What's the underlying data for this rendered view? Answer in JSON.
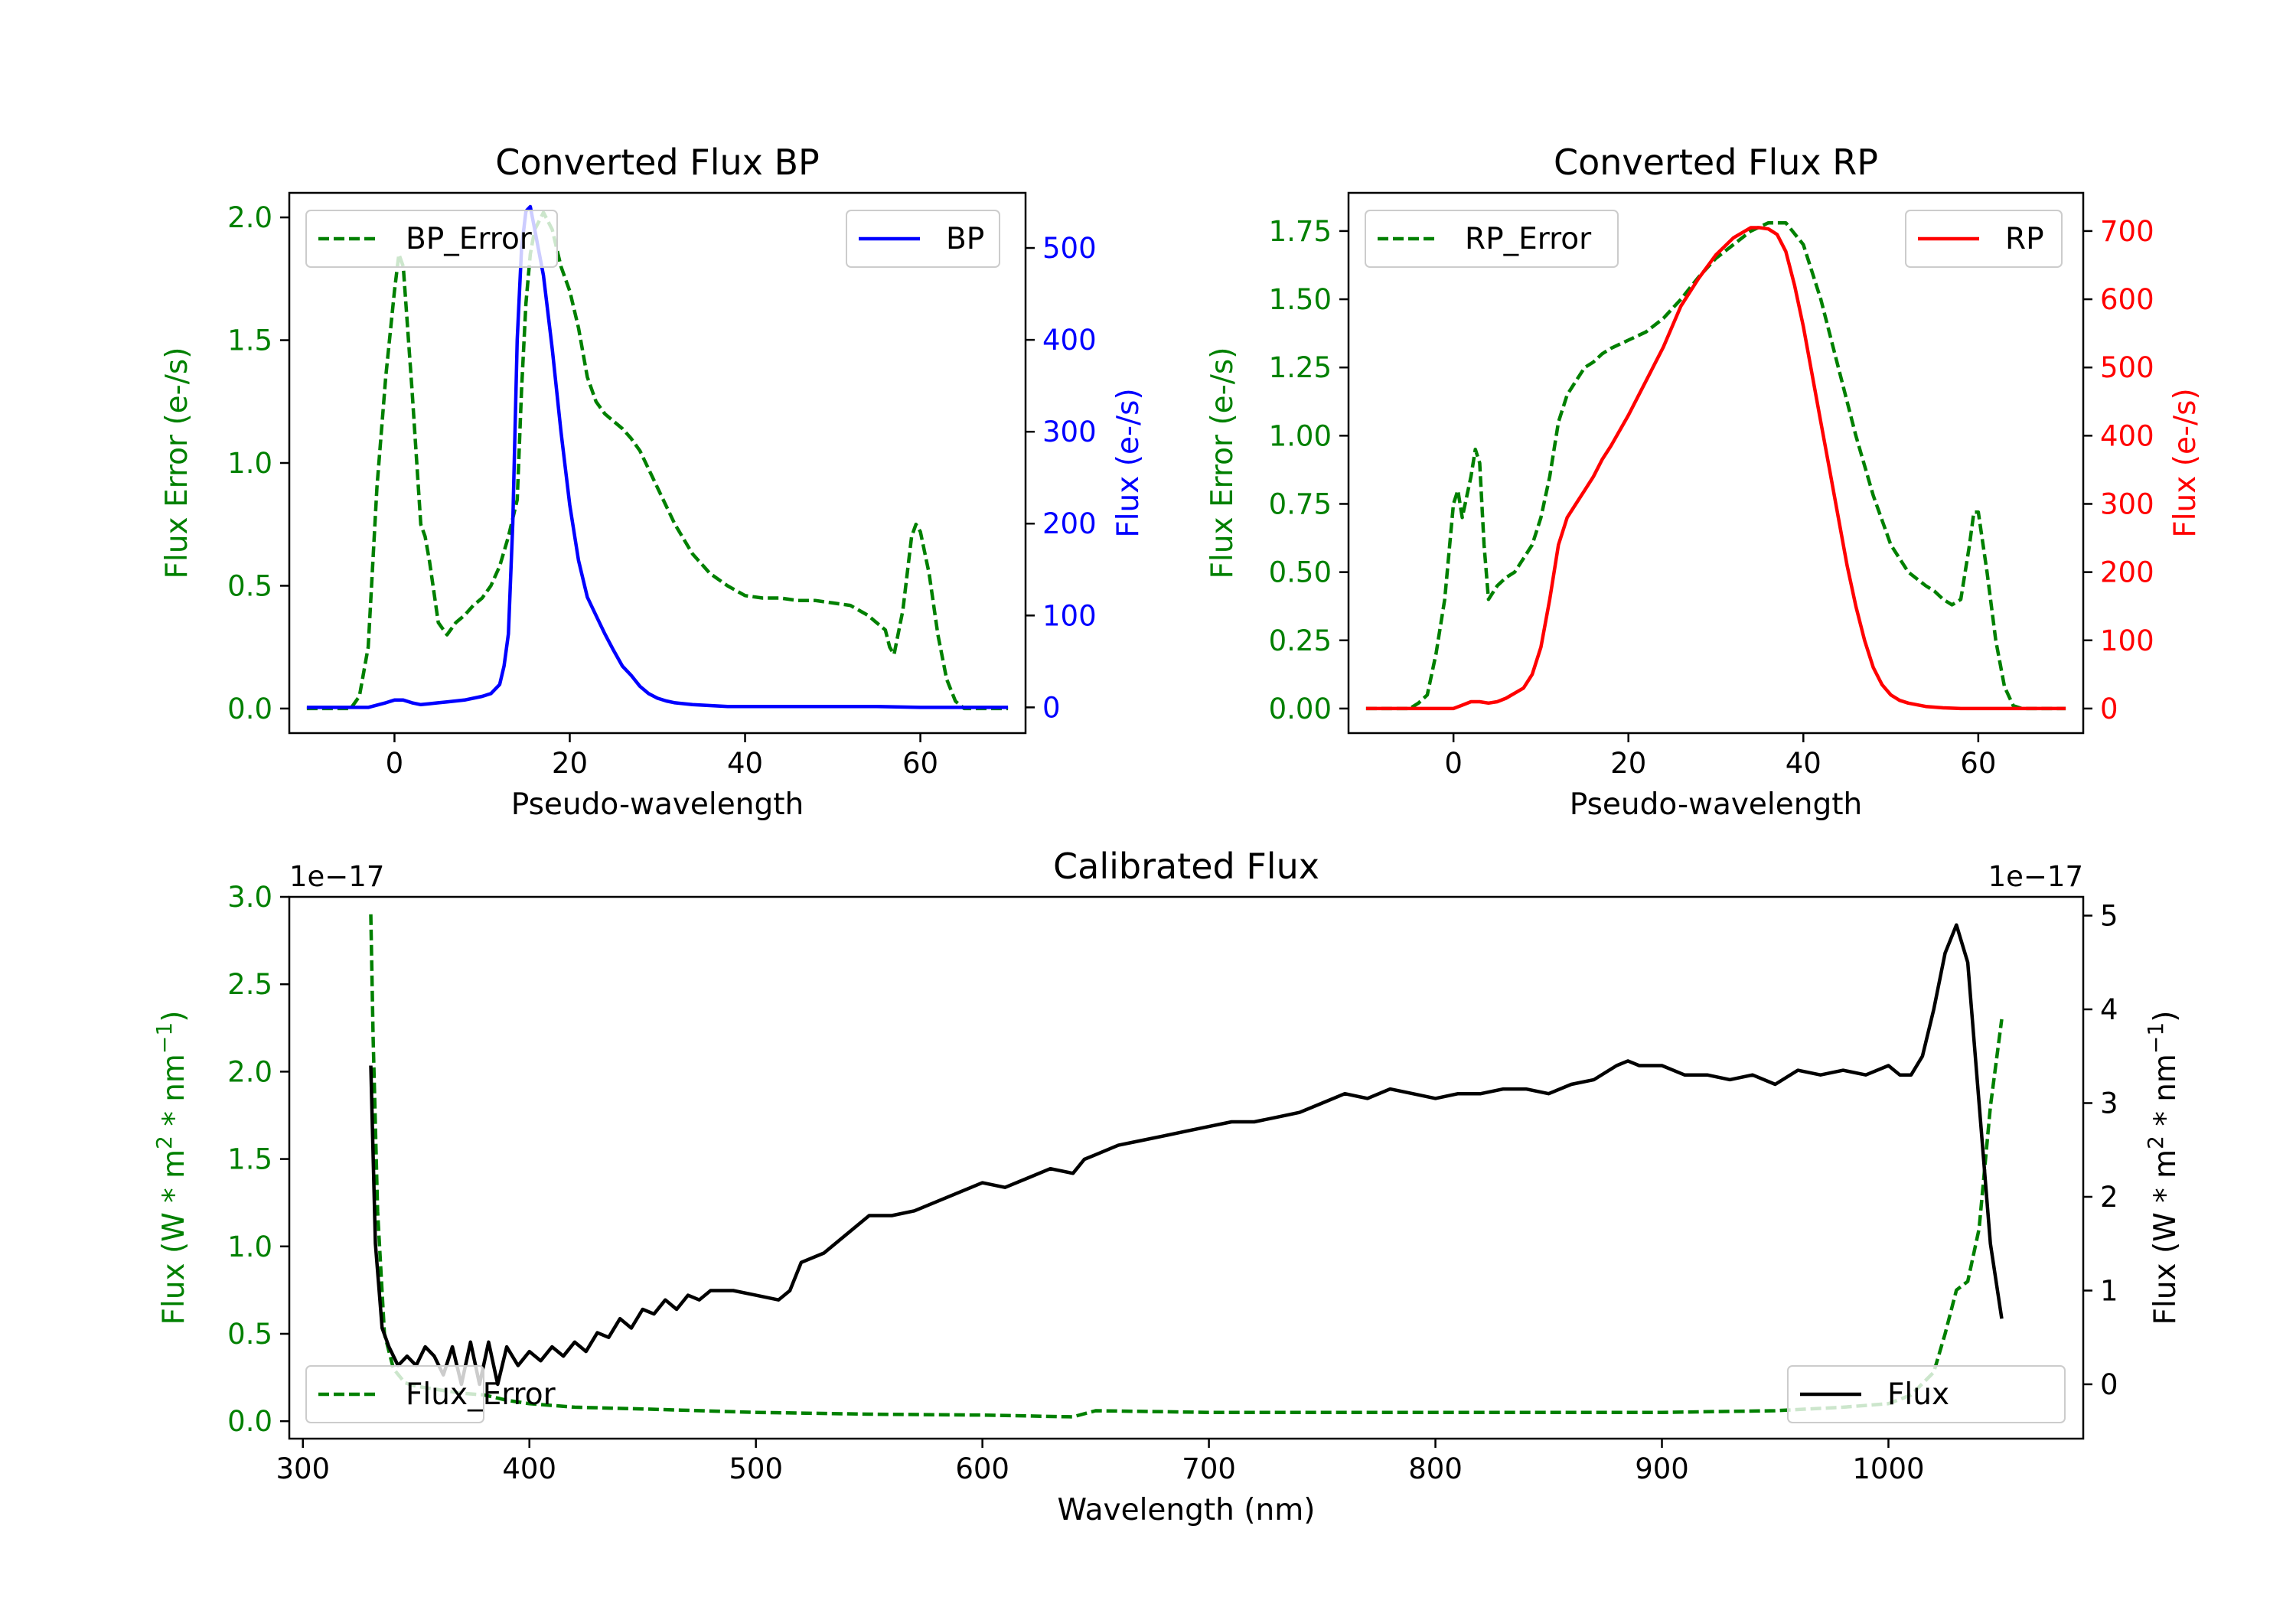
{
  "colors": {
    "bp": "#0000ff",
    "rp": "#ff0000",
    "error": "#008000",
    "flux": "#000000",
    "axis": "#000000"
  },
  "chart_data": [
    {
      "id": "bp",
      "type": "line",
      "title": "Converted Flux BP",
      "xlabel": "Pseudo-wavelength",
      "ylabel_left": "Flux Error (e-/s)",
      "ylabel_right": "Flux (e-/s)",
      "xlim": [
        -12,
        72
      ],
      "ylim_left": [
        -0.1,
        2.1
      ],
      "ylim_right": [
        -28,
        560
      ],
      "xticks": [
        0,
        20,
        40,
        60
      ],
      "yticks_left": [
        0.0,
        0.5,
        1.0,
        1.5,
        2.0
      ],
      "yticks_left_labels": [
        "0.0",
        "0.5",
        "1.0",
        "1.5",
        "2.0"
      ],
      "yticks_right": [
        0,
        100,
        200,
        300,
        400,
        500
      ],
      "yticks_right_labels": [
        "0",
        "100",
        "200",
        "300",
        "400",
        "500"
      ],
      "series": [
        {
          "name": "BP_Error",
          "axis": "left",
          "style": "dashed",
          "color": "#008000",
          "x": [
            -10,
            -5,
            -4,
            -3,
            -2,
            -1,
            0,
            0.5,
            1,
            2,
            3,
            3.5,
            4,
            5,
            6,
            7,
            8,
            9,
            10,
            11,
            12,
            13,
            14,
            14.5,
            15,
            15.5,
            16,
            17,
            18,
            19,
            20,
            21,
            22,
            23,
            24,
            25,
            26,
            27,
            28,
            30,
            32,
            34,
            36,
            38,
            40,
            42,
            44,
            46,
            48,
            50,
            52,
            54,
            55,
            56,
            56.5,
            57,
            58,
            59,
            59.5,
            60,
            61,
            62,
            63,
            64,
            65,
            66,
            70
          ],
          "y": [
            0,
            0,
            0.05,
            0.25,
            0.9,
            1.35,
            1.7,
            1.85,
            1.8,
            1.3,
            0.75,
            0.7,
            0.6,
            0.35,
            0.3,
            0.35,
            0.38,
            0.42,
            0.45,
            0.5,
            0.58,
            0.7,
            0.85,
            1.3,
            1.65,
            1.85,
            1.95,
            2.02,
            1.95,
            1.8,
            1.7,
            1.55,
            1.35,
            1.25,
            1.2,
            1.17,
            1.14,
            1.1,
            1.05,
            0.9,
            0.75,
            0.63,
            0.55,
            0.5,
            0.46,
            0.45,
            0.45,
            0.44,
            0.44,
            0.43,
            0.42,
            0.38,
            0.35,
            0.32,
            0.25,
            0.22,
            0.4,
            0.7,
            0.75,
            0.72,
            0.55,
            0.3,
            0.12,
            0.03,
            0,
            0,
            0
          ]
        },
        {
          "name": "BP",
          "axis": "right",
          "style": "solid",
          "color": "#0000ff",
          "x": [
            -10,
            -5,
            -3,
            -1,
            0,
            1,
            2,
            3,
            4,
            5,
            6,
            8,
            10,
            11,
            12,
            12.5,
            13,
            13.5,
            14,
            14.5,
            15,
            15.5,
            16,
            17,
            18,
            19,
            20,
            21,
            22,
            23,
            24,
            25,
            26,
            27,
            28,
            29,
            30,
            31,
            32,
            34,
            36,
            38,
            40,
            45,
            50,
            55,
            60,
            65,
            70
          ],
          "y": [
            0,
            0,
            0,
            5,
            8,
            8,
            5,
            3,
            4,
            5,
            6,
            8,
            12,
            15,
            25,
            45,
            80,
            200,
            400,
            500,
            540,
            545,
            520,
            470,
            390,
            300,
            220,
            160,
            120,
            100,
            80,
            62,
            45,
            35,
            23,
            15,
            10,
            7,
            5,
            3,
            2,
            1,
            1,
            1,
            1,
            1,
            0,
            0,
            0
          ]
        }
      ]
    },
    {
      "id": "rp",
      "type": "line",
      "title": "Converted Flux RP",
      "xlabel": "Pseudo-wavelength",
      "ylabel_left": "Flux Error (e-/s)",
      "ylabel_right": "Flux (e-/s)",
      "xlim": [
        -12,
        72
      ],
      "ylim_left": [
        -0.09,
        1.89
      ],
      "ylim_right": [
        -36,
        756
      ],
      "xticks": [
        0,
        20,
        40,
        60
      ],
      "yticks_left": [
        0.0,
        0.25,
        0.5,
        0.75,
        1.0,
        1.25,
        1.5,
        1.75
      ],
      "yticks_left_labels": [
        "0.00",
        "0.25",
        "0.50",
        "0.75",
        "1.00",
        "1.25",
        "1.50",
        "1.75"
      ],
      "yticks_right": [
        0,
        100,
        200,
        300,
        400,
        500,
        600,
        700
      ],
      "yticks_right_labels": [
        "0",
        "100",
        "200",
        "300",
        "400",
        "500",
        "600",
        "700"
      ],
      "series": [
        {
          "name": "RP_Error",
          "axis": "left",
          "style": "dashed",
          "color": "#008000",
          "x": [
            -10,
            -5,
            -4,
            -3,
            -2,
            -1,
            0,
            0.5,
            1,
            2,
            2.5,
            3,
            3.5,
            4,
            5,
            6,
            7,
            8,
            9,
            10,
            11,
            12,
            13,
            14,
            15,
            16,
            17,
            18,
            20,
            22,
            24,
            26,
            28,
            30,
            32,
            34,
            36,
            38,
            40,
            42,
            44,
            46,
            48,
            50,
            52,
            54,
            55,
            56,
            57,
            58,
            59,
            59.5,
            60,
            61,
            62,
            63,
            64,
            65,
            70
          ],
          "y": [
            0,
            0,
            0.02,
            0.05,
            0.2,
            0.4,
            0.75,
            0.8,
            0.7,
            0.85,
            0.95,
            0.9,
            0.6,
            0.4,
            0.45,
            0.48,
            0.5,
            0.55,
            0.6,
            0.7,
            0.85,
            1.05,
            1.15,
            1.2,
            1.25,
            1.27,
            1.3,
            1.32,
            1.35,
            1.38,
            1.43,
            1.5,
            1.58,
            1.65,
            1.7,
            1.75,
            1.78,
            1.78,
            1.7,
            1.5,
            1.25,
            1.0,
            0.78,
            0.6,
            0.5,
            0.45,
            0.43,
            0.4,
            0.38,
            0.4,
            0.6,
            0.72,
            0.72,
            0.5,
            0.25,
            0.08,
            0.01,
            0,
            0
          ]
        },
        {
          "name": "RP",
          "axis": "right",
          "style": "solid",
          "color": "#ff0000",
          "x": [
            -10,
            -5,
            0,
            1,
            2,
            3,
            4,
            5,
            6,
            8,
            9,
            10,
            11,
            12,
            13,
            14,
            15,
            16,
            17,
            18,
            20,
            22,
            24,
            26,
            28,
            30,
            32,
            34,
            35,
            36,
            37,
            38,
            39,
            40,
            41,
            42,
            43,
            44,
            45,
            46,
            47,
            48,
            49,
            50,
            51,
            52,
            54,
            56,
            58,
            60,
            62,
            65,
            70
          ],
          "y": [
            0,
            0,
            0,
            5,
            10,
            10,
            8,
            10,
            15,
            30,
            50,
            90,
            160,
            240,
            280,
            300,
            320,
            340,
            365,
            385,
            430,
            480,
            530,
            590,
            630,
            665,
            690,
            705,
            705,
            703,
            695,
            670,
            620,
            560,
            490,
            420,
            350,
            280,
            210,
            150,
            100,
            60,
            35,
            20,
            12,
            8,
            3,
            1,
            0,
            0,
            0,
            0,
            0
          ]
        }
      ]
    },
    {
      "id": "calibrated",
      "type": "line",
      "title": "Calibrated Flux",
      "xlabel": "Wavelength (nm)",
      "ylabel_left": "Flux (W * m^2 * nm^-1)",
      "ylabel_right": "Flux (W * m^2 * nm^-1)",
      "offset_left": "1e−17",
      "offset_right": "1e−17",
      "xlim": [
        294,
        1086
      ],
      "ylim_left": [
        -0.1,
        3.0
      ],
      "ylim_right": [
        -0.58,
        5.2
      ],
      "xticks": [
        300,
        400,
        500,
        600,
        700,
        800,
        900,
        1000
      ],
      "yticks_left": [
        0.0,
        0.5,
        1.0,
        1.5,
        2.0,
        2.5,
        3.0
      ],
      "yticks_left_labels": [
        "0.0",
        "0.5",
        "1.0",
        "1.5",
        "2.0",
        "2.5",
        "3.0"
      ],
      "yticks_right": [
        0,
        1,
        2,
        3,
        4,
        5
      ],
      "yticks_right_labels": [
        "0",
        "1",
        "2",
        "3",
        "4",
        "5"
      ],
      "series": [
        {
          "name": "Flux_Error",
          "axis": "left",
          "style": "dashed",
          "color": "#008000",
          "x": [
            330,
            331,
            333,
            336,
            340,
            345,
            350,
            360,
            370,
            380,
            390,
            400,
            420,
            450,
            500,
            550,
            600,
            640,
            650,
            700,
            800,
            900,
            950,
            980,
            1000,
            1010,
            1020,
            1025,
            1030,
            1035,
            1040,
            1045,
            1050
          ],
          "y": [
            2.9,
            2.2,
            1.2,
            0.5,
            0.3,
            0.22,
            0.2,
            0.18,
            0.16,
            0.15,
            0.12,
            0.1,
            0.08,
            0.07,
            0.05,
            0.04,
            0.035,
            0.025,
            0.06,
            0.05,
            0.05,
            0.05,
            0.06,
            0.08,
            0.1,
            0.15,
            0.28,
            0.5,
            0.75,
            0.8,
            1.1,
            1.8,
            2.3
          ]
        },
        {
          "name": "Flux",
          "axis": "right",
          "style": "solid",
          "color": "#000000",
          "x": [
            330,
            332,
            335,
            338,
            342,
            346,
            350,
            354,
            358,
            362,
            366,
            370,
            374,
            378,
            382,
            386,
            390,
            395,
            400,
            405,
            410,
            415,
            420,
            425,
            430,
            435,
            440,
            445,
            450,
            455,
            460,
            465,
            470,
            475,
            480,
            490,
            500,
            510,
            515,
            520,
            530,
            540,
            550,
            560,
            570,
            580,
            590,
            600,
            610,
            620,
            630,
            640,
            645,
            650,
            660,
            670,
            680,
            690,
            700,
            710,
            720,
            730,
            740,
            750,
            760,
            770,
            780,
            790,
            800,
            810,
            820,
            830,
            840,
            850,
            860,
            870,
            880,
            885,
            890,
            900,
            910,
            920,
            930,
            940,
            950,
            960,
            970,
            980,
            990,
            1000,
            1005,
            1010,
            1015,
            1020,
            1025,
            1030,
            1035,
            1040,
            1045,
            1050
          ],
          "y": [
            3.4,
            1.5,
            0.6,
            0.4,
            0.2,
            0.3,
            0.2,
            0.4,
            0.3,
            0.1,
            0.4,
            0.0,
            0.45,
            0.0,
            0.45,
            0.0,
            0.4,
            0.2,
            0.35,
            0.25,
            0.4,
            0.3,
            0.45,
            0.35,
            0.55,
            0.5,
            0.7,
            0.6,
            0.8,
            0.75,
            0.9,
            0.8,
            0.95,
            0.9,
            1.0,
            1.0,
            0.95,
            0.9,
            1.0,
            1.3,
            1.4,
            1.6,
            1.8,
            1.8,
            1.85,
            1.95,
            2.05,
            2.15,
            2.1,
            2.2,
            2.3,
            2.25,
            2.4,
            2.45,
            2.55,
            2.6,
            2.65,
            2.7,
            2.75,
            2.8,
            2.8,
            2.85,
            2.9,
            3.0,
            3.1,
            3.05,
            3.15,
            3.1,
            3.05,
            3.1,
            3.1,
            3.15,
            3.15,
            3.1,
            3.2,
            3.25,
            3.4,
            3.45,
            3.4,
            3.4,
            3.3,
            3.3,
            3.25,
            3.3,
            3.2,
            3.35,
            3.3,
            3.35,
            3.3,
            3.4,
            3.3,
            3.3,
            3.5,
            4.0,
            4.6,
            4.9,
            4.5,
            3.0,
            1.5,
            0.7
          ]
        }
      ]
    }
  ]
}
